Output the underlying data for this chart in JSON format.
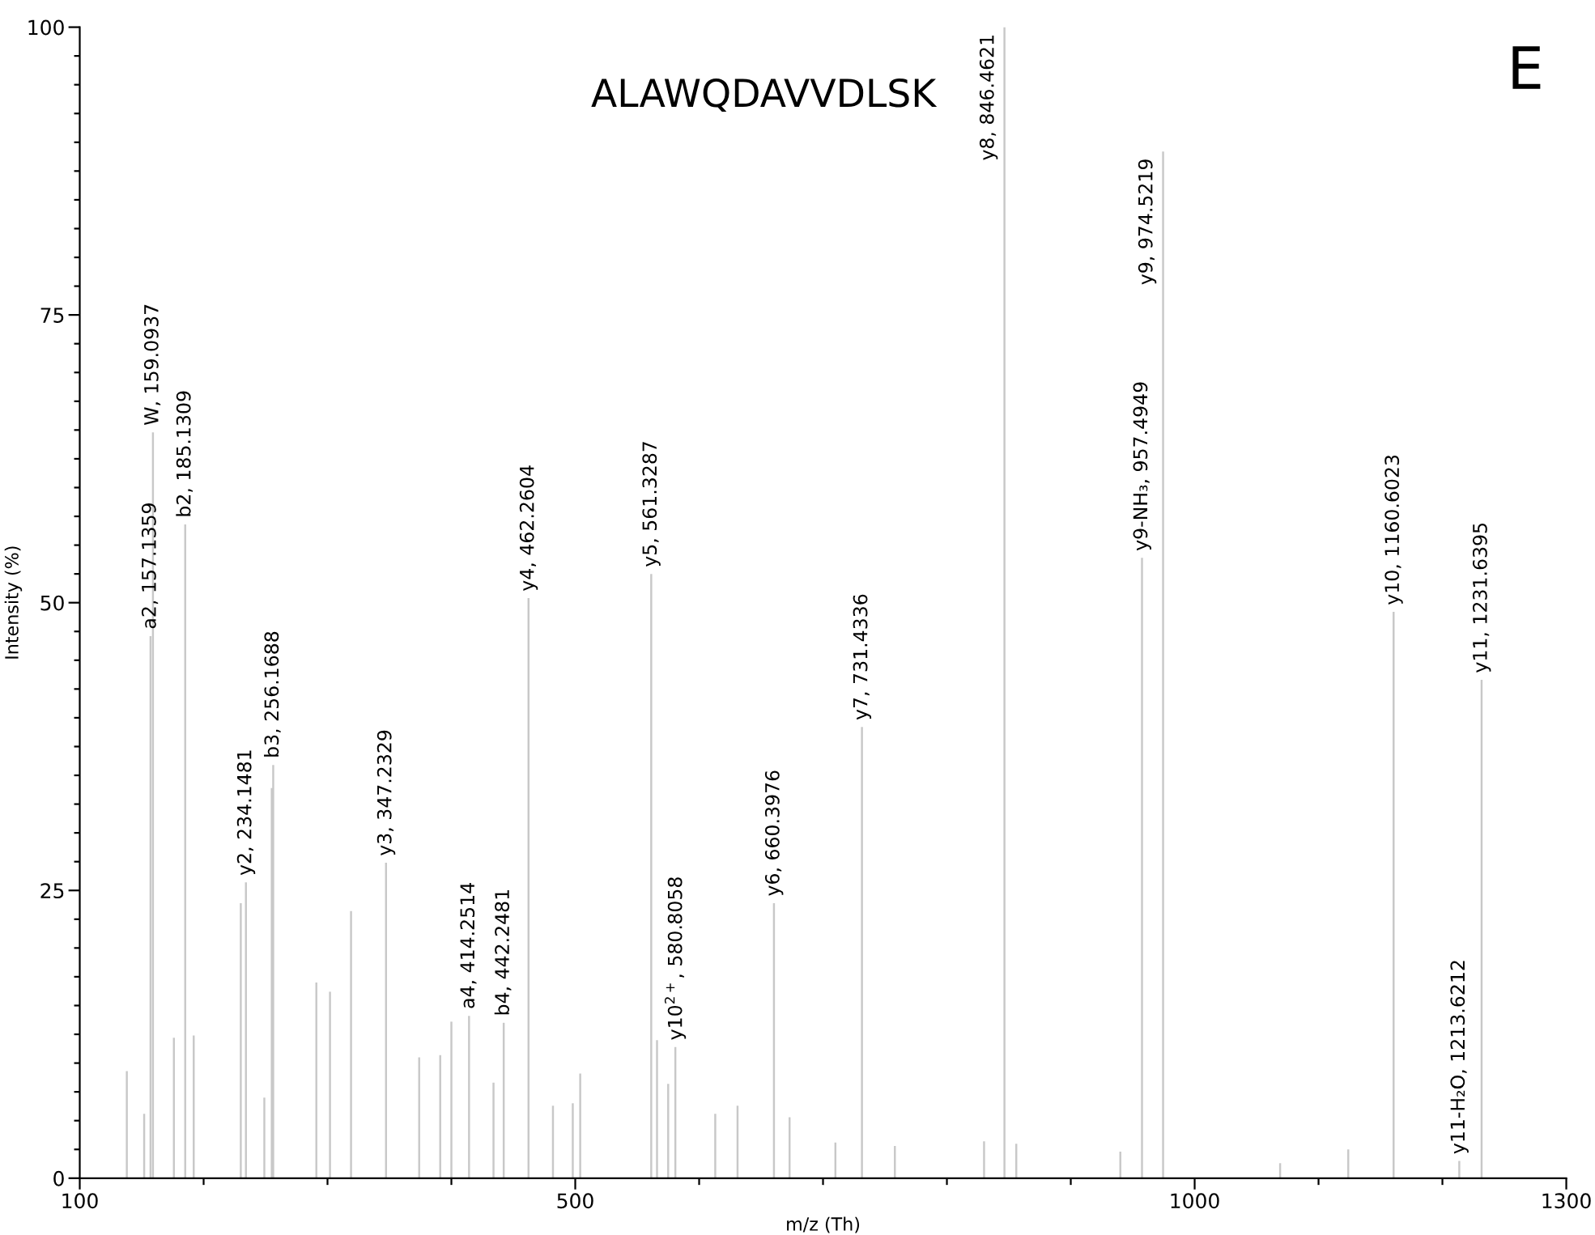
{
  "chart_data": {
    "type": "bar",
    "title": "ALAWQDAVVDLSK",
    "xlabel": "m/z (Th)",
    "ylabel": "Intensity (%)",
    "x": [
      138,
      152,
      157.1359,
      159.0937,
      176,
      185.1309,
      192,
      230,
      234.1481,
      249,
      255,
      256.1688,
      291,
      302,
      319,
      347.2329,
      374,
      391,
      400,
      414.2514,
      434,
      442.2481,
      462.2604,
      482,
      498,
      504,
      561.3287,
      566,
      575,
      580.8058,
      613,
      631,
      660.3976,
      673,
      710,
      731.4336,
      758,
      830,
      846.4621,
      856,
      940,
      957.4949,
      974.5219,
      1069,
      1124,
      1160.6023,
      1213.6212,
      1231.6395
    ],
    "values": [
      9.3,
      5.6,
      47.1,
      64.8,
      12.2,
      56.8,
      12.4,
      23.9,
      25.7,
      7.0,
      33.9,
      35.9,
      17.0,
      16.2,
      23.2,
      27.4,
      10.5,
      10.7,
      13.6,
      14.1,
      8.3,
      13.5,
      50.4,
      6.3,
      6.5,
      9.1,
      52.5,
      12.0,
      8.2,
      11.4,
      5.6,
      6.3,
      23.9,
      5.3,
      3.1,
      39.2,
      2.8,
      3.2,
      100,
      3.0,
      2.3,
      53.9,
      89.2,
      1.3,
      2.5,
      49.2,
      1.5,
      43.3
    ],
    "color": "#c8c8c8",
    "annotations": [
      {
        "text": "a2, 157.1359",
        "x": 157.1359,
        "y": 47.1
      },
      {
        "text": "W, 159.0937",
        "x": 159.0937,
        "y": 64.8
      },
      {
        "text": "b2, 185.1309",
        "x": 185.1309,
        "y": 56.8
      },
      {
        "text": "y2, 234.1481",
        "x": 234.1481,
        "y": 25.7
      },
      {
        "text": "b3, 256.1688",
        "x": 256.1688,
        "y": 35.9
      },
      {
        "text": "y3, 347.2329",
        "x": 347.2329,
        "y": 27.4
      },
      {
        "text": "a4, 414.2514",
        "x": 414.2514,
        "y": 14.1
      },
      {
        "text": "b4, 442.2481",
        "x": 442.2481,
        "y": 13.5
      },
      {
        "text": "y4, 462.2604",
        "x": 462.2604,
        "y": 50.4
      },
      {
        "text": "y5, 561.3287",
        "x": 561.3287,
        "y": 52.5
      },
      {
        "text": "y10$^{2+}$, 580.8058",
        "x": 580.8058,
        "y": 11.4
      },
      {
        "text": "y6, 660.3976",
        "x": 660.3976,
        "y": 23.9
      },
      {
        "text": "y7, 731.4336",
        "x": 731.4336,
        "y": 39.2
      },
      {
        "text": "y8, 846.4621",
        "x": 846.4621,
        "y": 100
      },
      {
        "text": "y9-NH₃, 957.4949",
        "x": 957.4949,
        "y": 53.9
      },
      {
        "text": "y9, 974.5219",
        "x": 974.5219,
        "y": 89.2
      },
      {
        "text": "y10, 1160.6023",
        "x": 1160.6023,
        "y": 49.2
      },
      {
        "text": "y11-H₂O, 1213.6212",
        "x": 1213.6212,
        "y": 1.5
      },
      {
        "text": "y11, 1231.6395",
        "x": 1231.6395,
        "y": 43.3
      },
      "E"
    ],
    "xlim": [
      100,
      1300
    ],
    "ylim": [
      0,
      100
    ],
    "xticks": [
      100,
      {
        "value": 200,
        "label": null
      },
      {
        "value": 300,
        "label": null
      },
      {
        "value": 400,
        "label": null
      },
      500,
      {
        "value": 600,
        "label": null
      },
      {
        "value": 700,
        "label": null
      },
      {
        "value": 800,
        "label": null
      },
      {
        "value": 900,
        "label": null
      },
      1000,
      {
        "value": 1100,
        "label": null
      },
      {
        "value": 1200,
        "label": null
      },
      1300
    ],
    "yticks": [
      0,
      {
        "value": 2.5,
        "label": null
      },
      {
        "value": 5,
        "label": null
      },
      {
        "value": 7.5,
        "label": null
      },
      {
        "value": 10,
        "label": null
      },
      {
        "value": 12.5,
        "label": null
      },
      {
        "value": 15,
        "label": null
      },
      {
        "value": 17.5,
        "label": null
      },
      {
        "value": 20,
        "label": null
      },
      {
        "value": 22.5,
        "label": null
      },
      25,
      {
        "value": 27.5,
        "label": null
      },
      {
        "value": 30,
        "label": null
      },
      {
        "value": 32.5,
        "label": null
      },
      {
        "value": 35,
        "label": null
      },
      {
        "value": 37.5,
        "label": null
      },
      {
        "value": 40,
        "label": null
      },
      {
        "value": 42.5,
        "label": null
      },
      {
        "value": 45,
        "label": null
      },
      {
        "value": 47.5,
        "label": null
      },
      50,
      {
        "value": 52.5,
        "label": null
      },
      {
        "value": 55,
        "label": null
      },
      {
        "value": 57.5,
        "label": null
      },
      {
        "value": 60,
        "label": null
      },
      {
        "value": 62.5,
        "label": null
      },
      {
        "value": 65,
        "label": null
      },
      {
        "value": 67.5,
        "label": null
      },
      {
        "value": 70,
        "label": null
      },
      {
        "value": 72.5,
        "label": null
      },
      75,
      {
        "value": 77.5,
        "label": null
      },
      {
        "value": 80,
        "label": null
      },
      {
        "value": 82.5,
        "label": null
      },
      {
        "value": 85,
        "label": null
      },
      {
        "value": 87.5,
        "label": null
      },
      {
        "value": 90,
        "label": null
      },
      {
        "value": 92.5,
        "label": null
      },
      {
        "value": 95,
        "label": null
      },
      {
        "value": 97.5,
        "label": null
      },
      100
    ],
    "grid": false,
    "legend": false
  }
}
